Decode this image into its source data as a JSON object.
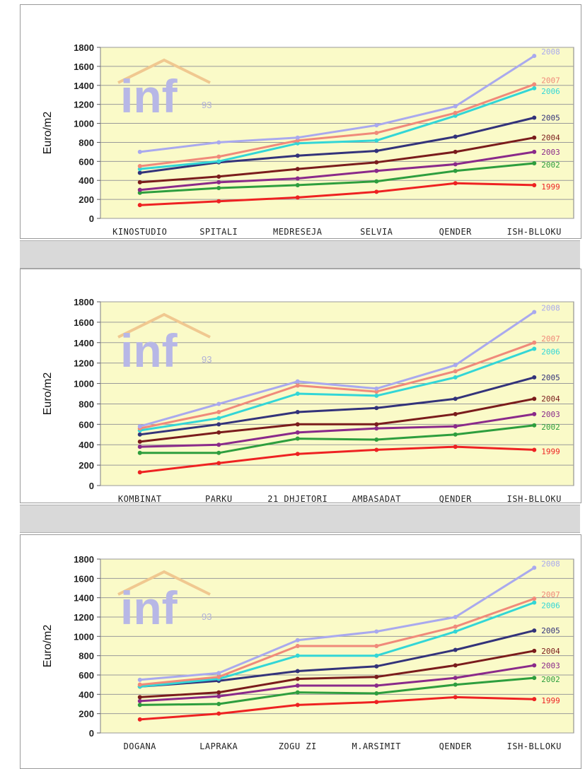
{
  "colors": {
    "2008": "#a9a9ee",
    "2007": "#f08a7a",
    "2006": "#33d6d6",
    "2005": "#33337a",
    "2004": "#7a1c1c",
    "2003": "#8a2a8a",
    "2002": "#2e9e3e",
    "1999": "#ee2222"
  },
  "logo": {
    "text": "inf",
    "sub": "93"
  },
  "chart_data": [
    {
      "type": "line",
      "ylabel": "Euro/m2",
      "ylim": [
        0,
        1800
      ],
      "yticks": [
        0,
        200,
        400,
        600,
        800,
        1000,
        1200,
        1400,
        1600,
        1800
      ],
      "grid": true,
      "categories": [
        "KINOSTUDIO",
        "SPITALI",
        "MEDRESEJA",
        "SELVIA",
        "QENDER",
        "ISH-BLLOKU"
      ],
      "series": [
        {
          "name": "2008",
          "values": [
            700,
            800,
            850,
            980,
            1180,
            1710
          ]
        },
        {
          "name": "2007",
          "values": [
            550,
            650,
            820,
            900,
            1110,
            1410
          ]
        },
        {
          "name": "2006",
          "values": [
            520,
            600,
            790,
            820,
            1080,
            1370
          ]
        },
        {
          "name": "2005",
          "values": [
            480,
            590,
            660,
            710,
            860,
            1060
          ]
        },
        {
          "name": "2004",
          "values": [
            380,
            440,
            520,
            590,
            700,
            850
          ]
        },
        {
          "name": "2003",
          "values": [
            300,
            380,
            420,
            500,
            570,
            700
          ]
        },
        {
          "name": "2002",
          "values": [
            270,
            320,
            350,
            390,
            500,
            580
          ]
        },
        {
          "name": "1999",
          "values": [
            140,
            180,
            220,
            280,
            370,
            350
          ]
        }
      ]
    },
    {
      "type": "line",
      "ylabel": "Euro/m2",
      "ylim": [
        0,
        1800
      ],
      "yticks": [
        0,
        200,
        400,
        600,
        800,
        1000,
        1200,
        1400,
        1600,
        1800
      ],
      "grid": true,
      "categories": [
        "KOMBINAT",
        "PARKU",
        "21 DHJETORI",
        "AMBASADAT",
        "QENDER",
        "ISH-BLLOKU"
      ],
      "series": [
        {
          "name": "2008",
          "values": [
            580,
            800,
            1020,
            950,
            1180,
            1700
          ]
        },
        {
          "name": "2007",
          "values": [
            560,
            720,
            980,
            920,
            1120,
            1400
          ]
        },
        {
          "name": "2006",
          "values": [
            540,
            660,
            900,
            880,
            1060,
            1340
          ]
        },
        {
          "name": "2005",
          "values": [
            500,
            600,
            720,
            760,
            850,
            1060
          ]
        },
        {
          "name": "2004",
          "values": [
            430,
            520,
            600,
            600,
            700,
            850
          ]
        },
        {
          "name": "2003",
          "values": [
            380,
            400,
            520,
            560,
            580,
            700
          ]
        },
        {
          "name": "2002",
          "values": [
            320,
            320,
            460,
            450,
            500,
            590
          ]
        },
        {
          "name": "1999",
          "values": [
            130,
            220,
            310,
            350,
            380,
            350
          ]
        }
      ]
    },
    {
      "type": "line",
      "ylabel": "Euro/m2",
      "ylim": [
        0,
        1800
      ],
      "yticks": [
        0,
        200,
        400,
        600,
        800,
        1000,
        1200,
        1400,
        1600,
        1800
      ],
      "grid": true,
      "categories": [
        "DOGANA",
        "LAPRAKA",
        "ZOGU ZI",
        "M.ARSIMIT",
        "QENDER",
        "ISH-BLLOKU"
      ],
      "series": [
        {
          "name": "2008",
          "values": [
            550,
            620,
            960,
            1050,
            1200,
            1710
          ]
        },
        {
          "name": "2007",
          "values": [
            500,
            580,
            900,
            900,
            1100,
            1390
          ]
        },
        {
          "name": "2006",
          "values": [
            480,
            560,
            800,
            800,
            1050,
            1350
          ]
        },
        {
          "name": "2005",
          "values": [
            480,
            540,
            640,
            690,
            860,
            1060
          ]
        },
        {
          "name": "2004",
          "values": [
            370,
            420,
            560,
            580,
            700,
            850
          ]
        },
        {
          "name": "2003",
          "values": [
            330,
            380,
            490,
            490,
            570,
            700
          ]
        },
        {
          "name": "2002",
          "values": [
            290,
            300,
            420,
            410,
            500,
            570
          ]
        },
        {
          "name": "1999",
          "values": [
            140,
            200,
            290,
            320,
            370,
            350
          ]
        }
      ]
    }
  ]
}
